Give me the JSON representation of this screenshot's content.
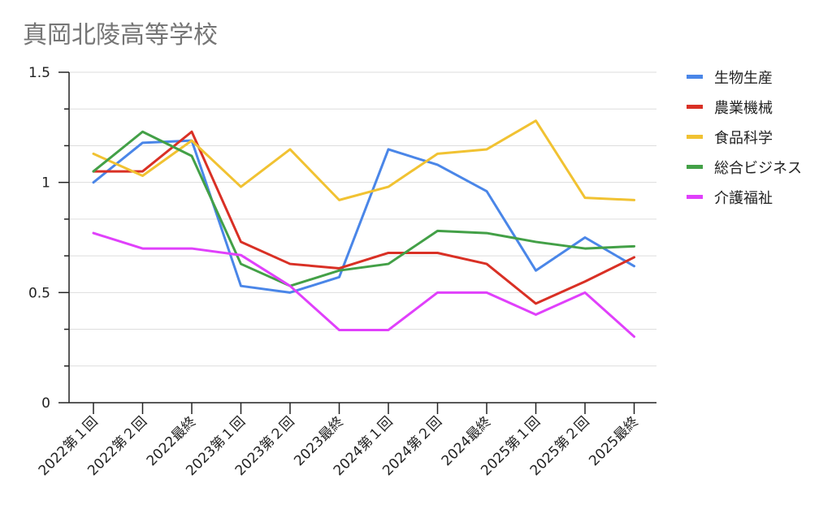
{
  "chart_data": {
    "type": "line",
    "title": "真岡北陵高等学校",
    "xlabel": "",
    "ylabel": "",
    "ylim": [
      0,
      1.5
    ],
    "y_ticks": [
      0,
      0.5,
      1,
      1.5
    ],
    "y_tick_labels": [
      "0",
      "0.5",
      "1",
      "1.5"
    ],
    "grid": true,
    "legend_position": "right",
    "categories": [
      "2022第１回",
      "2022第２回",
      "2022最終",
      "2023第１回",
      "2023第２回",
      "2023最終",
      "2024第１回",
      "2024第２回",
      "2024最終",
      "2025第１回",
      "2025第２回",
      "2025最終"
    ],
    "series": [
      {
        "name": "生物生産",
        "color": "#4a86e8",
        "values": [
          1.0,
          1.18,
          1.19,
          0.53,
          0.5,
          0.57,
          1.15,
          1.08,
          0.96,
          0.6,
          0.75,
          0.62
        ]
      },
      {
        "name": "農業機械",
        "color": "#d93025",
        "values": [
          1.05,
          1.05,
          1.23,
          0.73,
          0.63,
          0.61,
          0.68,
          0.68,
          0.63,
          0.45,
          0.55,
          0.66
        ]
      },
      {
        "name": "食品科学",
        "color": "#f1c232",
        "values": [
          1.13,
          1.03,
          1.19,
          0.98,
          1.15,
          0.92,
          0.98,
          1.13,
          1.15,
          1.28,
          0.93,
          0.92
        ]
      },
      {
        "name": "総合ビジネス",
        "color": "#43a047",
        "values": [
          1.05,
          1.23,
          1.12,
          0.63,
          0.53,
          0.6,
          0.63,
          0.78,
          0.77,
          0.73,
          0.7,
          0.71
        ]
      },
      {
        "name": "介護福祉",
        "color": "#e040fb",
        "values": [
          0.77,
          0.7,
          0.7,
          0.67,
          0.53,
          0.33,
          0.33,
          0.5,
          0.5,
          0.4,
          0.5,
          0.3
        ]
      }
    ]
  }
}
